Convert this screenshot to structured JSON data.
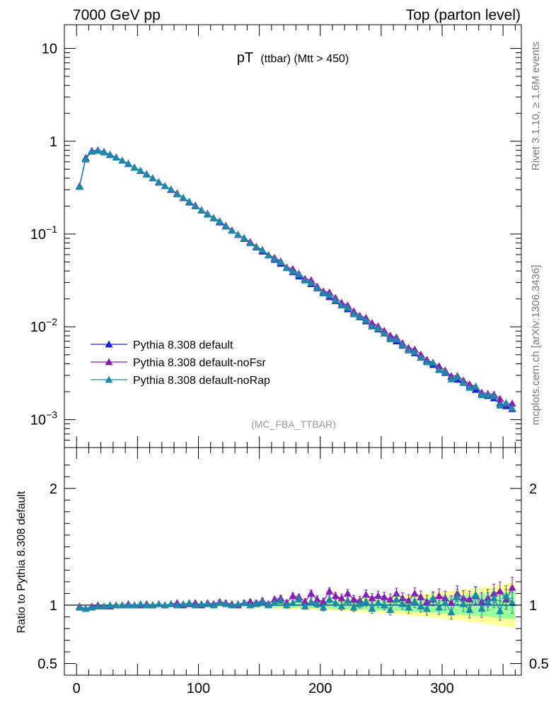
{
  "header": {
    "left": "7000 GeV pp",
    "right": "Top (parton level)"
  },
  "side_text": {
    "rivet": "Rivet 3.1.10, ≥ 1.6M events",
    "mcplots": "mcplots.cern.ch [arXiv:1306.3436]"
  },
  "chart_data": [
    {
      "type": "scatter",
      "panel": "main",
      "title_main": "pT",
      "title_sub": "(ttbar) (Mtt > 450)",
      "watermark": "(MC_FBA_TTBAR)",
      "xlabel": "",
      "ylabel": "",
      "log_y": true,
      "xlim": [
        -10,
        365
      ],
      "ylim": [
        0.0005,
        18
      ],
      "x_ticks": [
        0,
        100,
        200,
        300
      ],
      "y_ticks": [
        {
          "value": 10,
          "base": "10",
          "exp": ""
        },
        {
          "value": 1,
          "base": "1",
          "exp": ""
        },
        {
          "value": 0.1,
          "base": "10",
          "exp": "−1"
        },
        {
          "value": 0.01,
          "base": "10",
          "exp": "−2"
        },
        {
          "value": 0.001,
          "base": "10",
          "exp": "−3"
        }
      ],
      "legend_position": "lower-left",
      "series": [
        {
          "name": "Pythia 8.308 default",
          "color": "#1f1fd6"
        },
        {
          "name": "Pythia 8.308 default-noFsr",
          "color": "#8a1ab8"
        },
        {
          "name": "Pythia 8.308 default-noRap",
          "color": "#1a8aa8"
        }
      ],
      "x": [
        2.5,
        7.5,
        12.5,
        17.5,
        22.5,
        27.5,
        32.5,
        37.5,
        42.5,
        47.5,
        52.5,
        57.5,
        62.5,
        67.5,
        72.5,
        77.5,
        82.5,
        87.5,
        92.5,
        97.5,
        102.5,
        107.5,
        112.5,
        117.5,
        122.5,
        127.5,
        132.5,
        137.5,
        142.5,
        147.5,
        152.5,
        157.5,
        162.5,
        167.5,
        172.5,
        177.5,
        182.5,
        187.5,
        192.5,
        197.5,
        202.5,
        207.5,
        212.5,
        217.5,
        222.5,
        227.5,
        232.5,
        237.5,
        242.5,
        247.5,
        252.5,
        257.5,
        262.5,
        267.5,
        272.5,
        277.5,
        282.5,
        287.5,
        292.5,
        297.5,
        302.5,
        307.5,
        312.5,
        317.5,
        322.5,
        327.5,
        332.5,
        337.5,
        342.5,
        347.5,
        352.5,
        357.5
      ],
      "default_values": [
        0.33,
        0.66,
        0.79,
        0.8,
        0.77,
        0.72,
        0.67,
        0.62,
        0.57,
        0.52,
        0.48,
        0.44,
        0.4,
        0.36,
        0.33,
        0.3,
        0.27,
        0.245,
        0.22,
        0.2,
        0.18,
        0.163,
        0.148,
        0.134,
        0.121,
        0.109,
        0.098,
        0.089,
        0.08,
        0.072,
        0.065,
        0.059,
        0.053,
        0.048,
        0.043,
        0.039,
        0.035,
        0.032,
        0.029,
        0.026,
        0.0235,
        0.021,
        0.019,
        0.0172,
        0.0155,
        0.014,
        0.0127,
        0.0115,
        0.0104,
        0.0094,
        0.0085,
        0.0077,
        0.007,
        0.0063,
        0.0057,
        0.0052,
        0.0047,
        0.0043,
        0.0039,
        0.0035,
        0.0032,
        0.0029,
        0.0027,
        0.0025,
        0.0023,
        0.0021,
        0.0019,
        0.0018,
        0.0017,
        0.0015,
        0.0014,
        0.0013
      ],
      "ratio_noFsr": [
        0.99,
        0.97,
        0.99,
        1.0,
        0.99,
        0.99,
        1.0,
        1.0,
        1.01,
        1.0,
        1.0,
        1.01,
        1.0,
        1.01,
        1.0,
        1.01,
        1.02,
        1.0,
        1.01,
        1.02,
        1.0,
        1.02,
        1.01,
        1.03,
        1.02,
        1.01,
        1.0,
        1.02,
        1.03,
        1.02,
        1.04,
        1.01,
        1.05,
        1.06,
        1.02,
        1.08,
        1.07,
        1.03,
        1.1,
        1.05,
        1.03,
        1.12,
        1.08,
        1.06,
        1.1,
        1.05,
        1.04,
        1.09,
        1.06,
        1.08,
        1.07,
        1.05,
        1.1,
        1.06,
        1.04,
        1.1,
        1.07,
        1.03,
        1.05,
        1.08,
        1.06,
        1.02,
        1.1,
        1.06,
        1.05,
        1.08,
        1.03,
        1.06,
        1.1,
        1.12,
        1.05,
        1.15
      ],
      "ratio_noRap": [
        0.98,
        0.97,
        0.98,
        0.99,
        0.99,
        1.0,
        1.0,
        1.0,
        1.0,
        1.0,
        1.01,
        1.0,
        1.0,
        1.01,
        1.0,
        1.01,
        1.0,
        1.01,
        1.02,
        1.0,
        1.01,
        1.01,
        1.0,
        1.02,
        1.01,
        1.0,
        1.01,
        1.02,
        1.0,
        1.01,
        1.03,
        1.0,
        1.02,
        1.04,
        1.0,
        1.02,
        1.05,
        0.99,
        1.03,
        1.01,
        0.98,
        1.05,
        1.02,
        0.99,
        1.04,
        0.98,
        1.01,
        1.03,
        0.97,
        1.02,
        1.0,
        0.96,
        1.05,
        1.01,
        0.98,
        1.03,
        0.99,
        0.97,
        1.06,
        0.98,
        1.02,
        0.94,
        1.07,
        1.01,
        0.96,
        1.09,
        0.97,
        1.03,
        1.06,
        0.95,
        1.08,
        1.02
      ],
      "ratio_noFsr_err": [
        0.01,
        0.01,
        0.01,
        0.01,
        0.01,
        0.01,
        0.01,
        0.01,
        0.01,
        0.01,
        0.01,
        0.01,
        0.01,
        0.01,
        0.01,
        0.01,
        0.01,
        0.01,
        0.01,
        0.01,
        0.015,
        0.015,
        0.015,
        0.015,
        0.015,
        0.015,
        0.015,
        0.02,
        0.02,
        0.02,
        0.02,
        0.02,
        0.02,
        0.025,
        0.025,
        0.025,
        0.025,
        0.025,
        0.03,
        0.03,
        0.03,
        0.03,
        0.03,
        0.035,
        0.035,
        0.035,
        0.035,
        0.04,
        0.04,
        0.04,
        0.04,
        0.045,
        0.045,
        0.045,
        0.05,
        0.05,
        0.05,
        0.055,
        0.055,
        0.06,
        0.06,
        0.06,
        0.065,
        0.065,
        0.07,
        0.07,
        0.075,
        0.075,
        0.08,
        0.08,
        0.085,
        0.09
      ],
      "ratio_noRap_err": [
        0.01,
        0.01,
        0.01,
        0.01,
        0.01,
        0.01,
        0.01,
        0.01,
        0.01,
        0.01,
        0.01,
        0.01,
        0.01,
        0.01,
        0.01,
        0.01,
        0.01,
        0.01,
        0.01,
        0.01,
        0.015,
        0.015,
        0.015,
        0.015,
        0.015,
        0.015,
        0.015,
        0.02,
        0.02,
        0.02,
        0.02,
        0.02,
        0.02,
        0.025,
        0.025,
        0.025,
        0.025,
        0.025,
        0.03,
        0.03,
        0.03,
        0.03,
        0.03,
        0.035,
        0.035,
        0.035,
        0.035,
        0.04,
        0.04,
        0.04,
        0.04,
        0.045,
        0.045,
        0.045,
        0.05,
        0.05,
        0.05,
        0.055,
        0.055,
        0.06,
        0.06,
        0.06,
        0.065,
        0.065,
        0.07,
        0.07,
        0.075,
        0.075,
        0.08,
        0.08,
        0.085,
        0.09
      ],
      "default_rel_err": [
        0.005,
        0.005,
        0.005,
        0.005,
        0.005,
        0.005,
        0.005,
        0.005,
        0.006,
        0.006,
        0.006,
        0.006,
        0.007,
        0.007,
        0.007,
        0.008,
        0.008,
        0.008,
        0.009,
        0.009,
        0.01,
        0.01,
        0.011,
        0.011,
        0.012,
        0.012,
        0.013,
        0.014,
        0.014,
        0.015,
        0.016,
        0.017,
        0.018,
        0.019,
        0.02,
        0.021,
        0.022,
        0.023,
        0.024,
        0.025,
        0.027,
        0.028,
        0.03,
        0.031,
        0.033,
        0.035,
        0.037,
        0.039,
        0.041,
        0.043,
        0.045,
        0.047,
        0.05,
        0.052,
        0.055,
        0.058,
        0.06,
        0.063,
        0.066,
        0.07,
        0.073,
        0.077,
        0.08,
        0.084,
        0.088,
        0.092,
        0.096,
        0.1,
        0.105,
        0.11,
        0.115,
        0.12
      ]
    },
    {
      "type": "scatter",
      "panel": "ratio",
      "ylabel": "Ratio to Pythia 8.308 default",
      "ylim": [
        0.4,
        2.35
      ],
      "y_ticks": [
        {
          "value": 2,
          "label": "2"
        },
        {
          "value": 1,
          "label": "1"
        },
        {
          "value": 0.5,
          "label": "0.5"
        }
      ],
      "x_ticks": [
        {
          "value": 0,
          "label": "0"
        },
        {
          "value": 100,
          "label": "100"
        },
        {
          "value": 200,
          "label": "200"
        },
        {
          "value": 300,
          "label": "300"
        }
      ]
    }
  ]
}
